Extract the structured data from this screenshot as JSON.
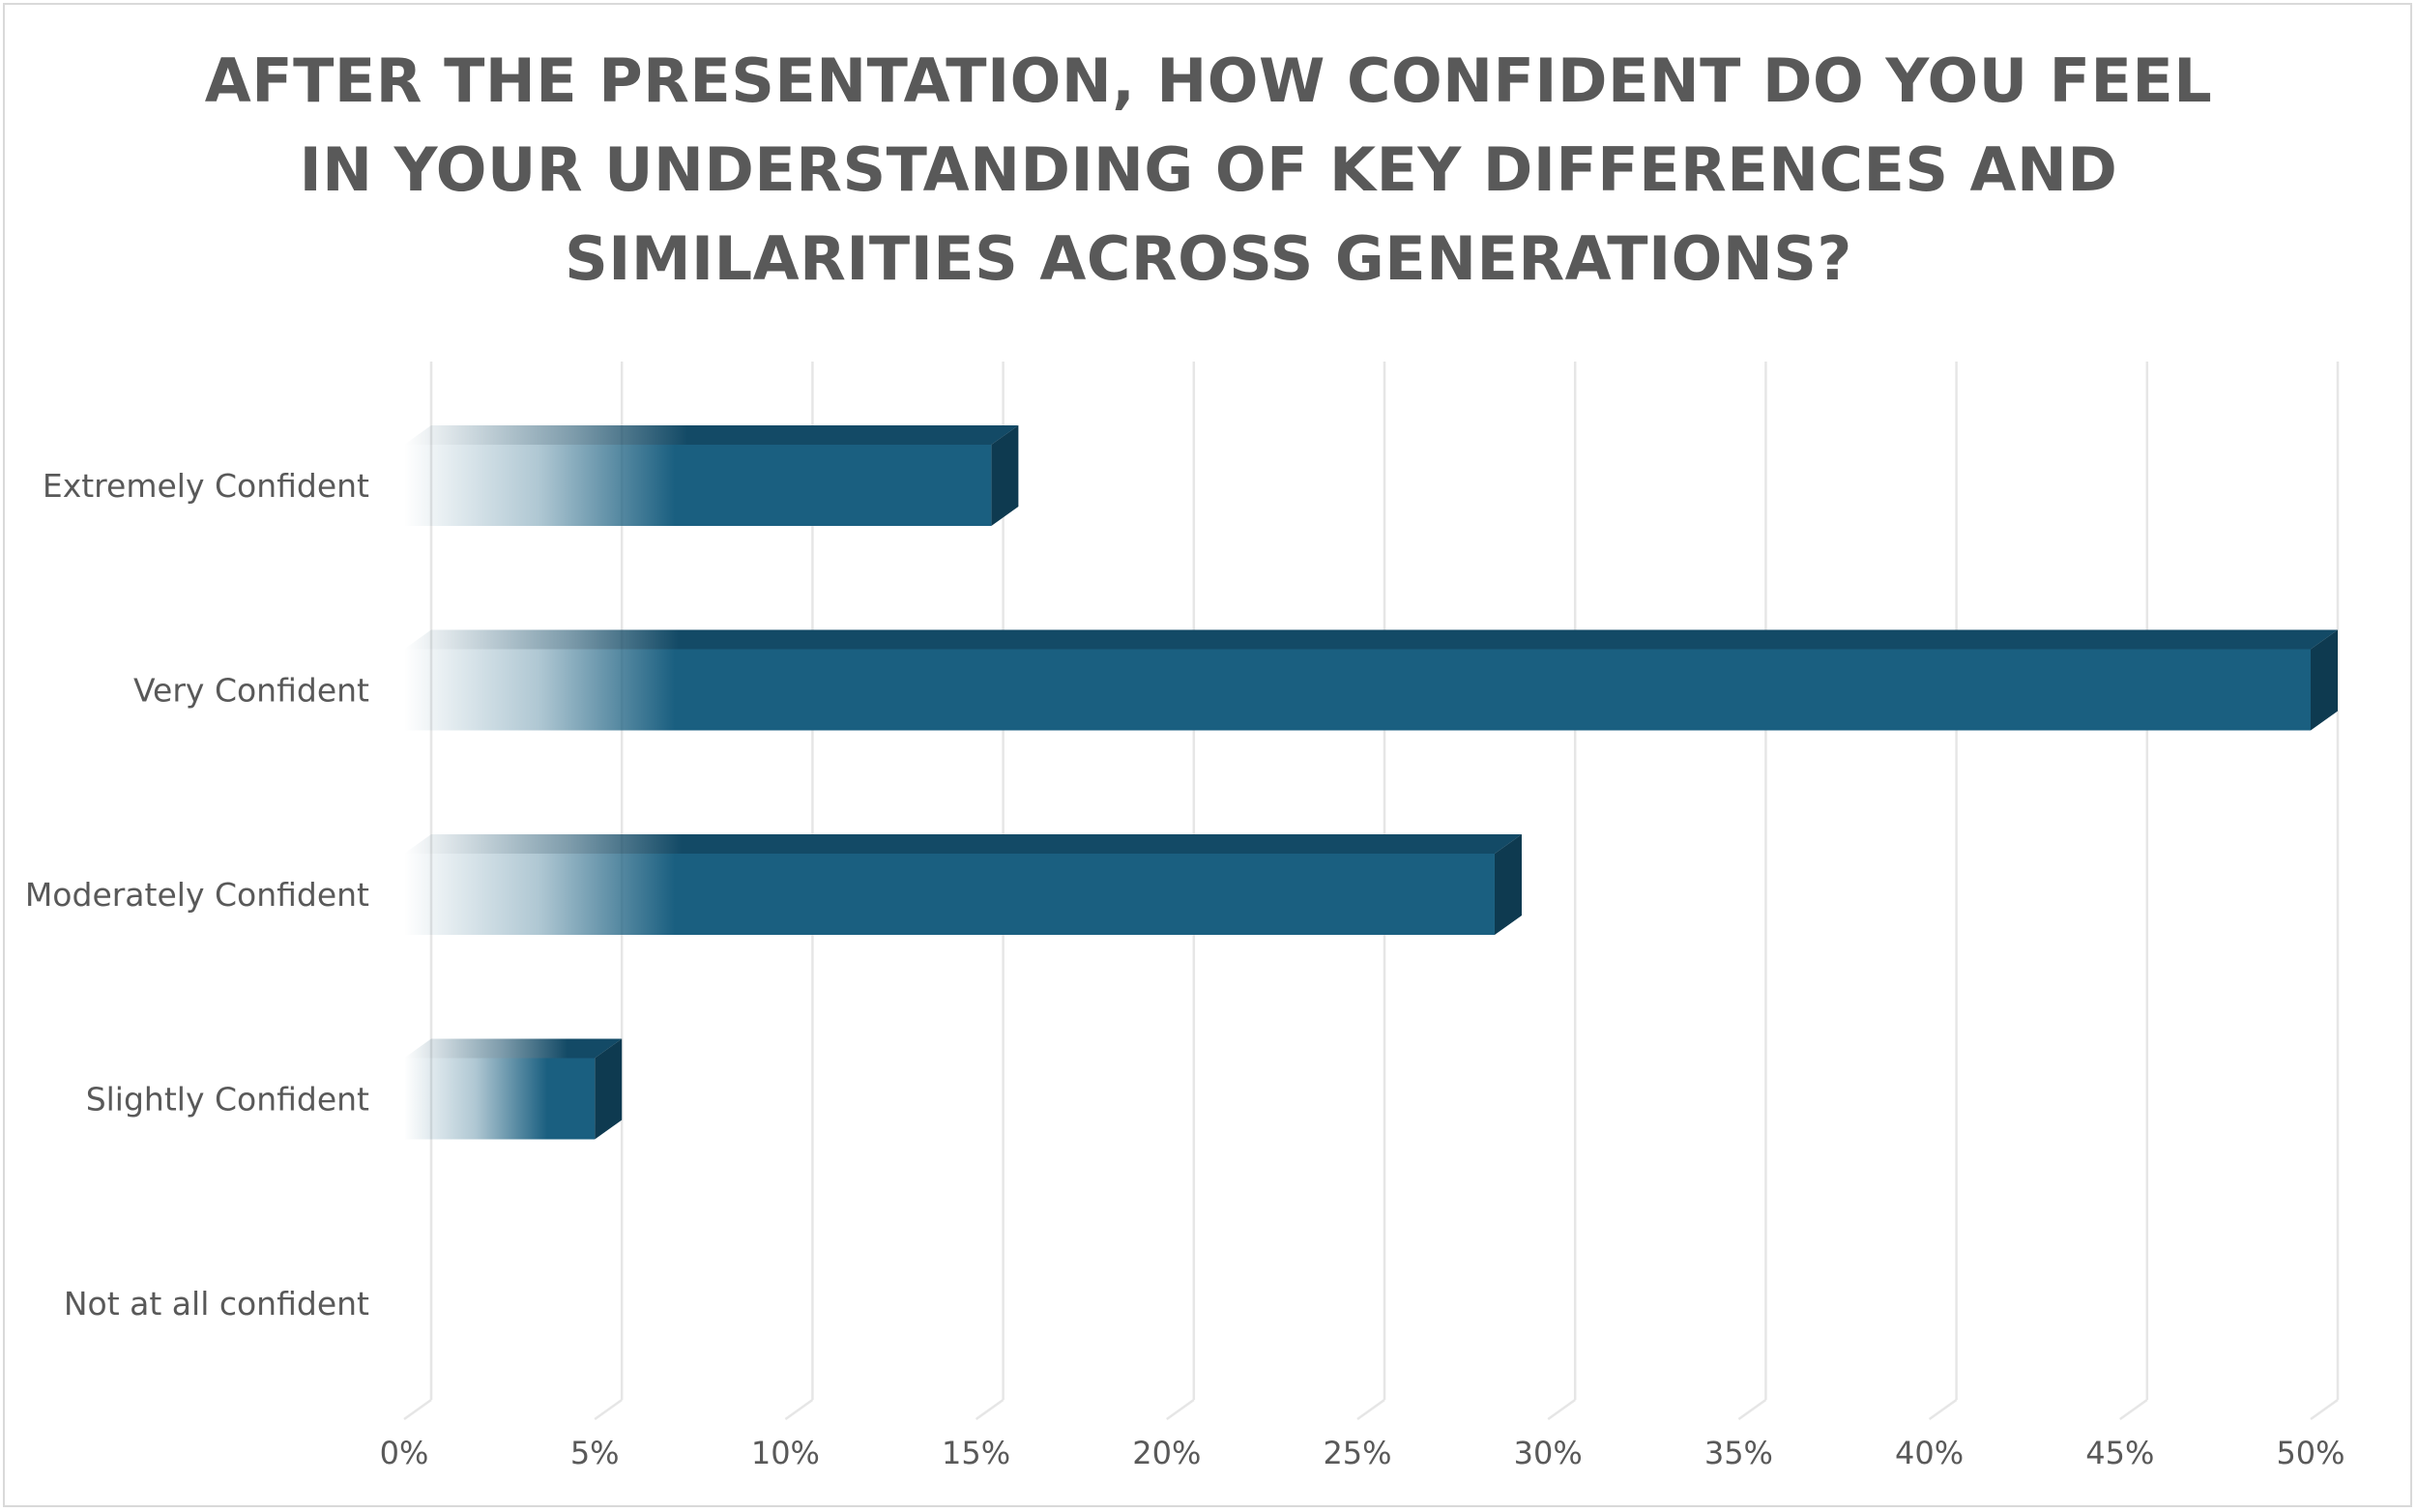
{
  "chart_data": {
    "type": "bar",
    "orientation": "horizontal",
    "title_lines": [
      "AFTER THE PRESENTATION, HOW CONFIDENT DO YOU FEEL",
      "IN YOUR UNDERSTANDING OF KEY DIFFERENCES AND",
      "SIMILARITIES ACROSS GENERATIONS?"
    ],
    "categories": [
      "Extremely Confident",
      "Very Confident",
      "Moderately Confident",
      "Slightly Confident",
      "Not at all confident"
    ],
    "values": [
      15.4,
      50.0,
      28.6,
      5.0,
      0.0
    ],
    "xlim": [
      0,
      50
    ],
    "xticks": [
      0,
      5,
      10,
      15,
      20,
      25,
      30,
      35,
      40,
      45,
      50
    ],
    "xtick_labels": [
      "0%",
      "5%",
      "10%",
      "15%",
      "20%",
      "25%",
      "30%",
      "35%",
      "40%",
      "45%",
      "50%"
    ],
    "grid": true,
    "legend": "none",
    "colors": {
      "bar_front": "#1a5f80",
      "bar_top": "#134a66",
      "bar_side": "#0e3a50",
      "title": "#595959",
      "labels": "#595959",
      "grid": "#e6e6e6"
    }
  }
}
